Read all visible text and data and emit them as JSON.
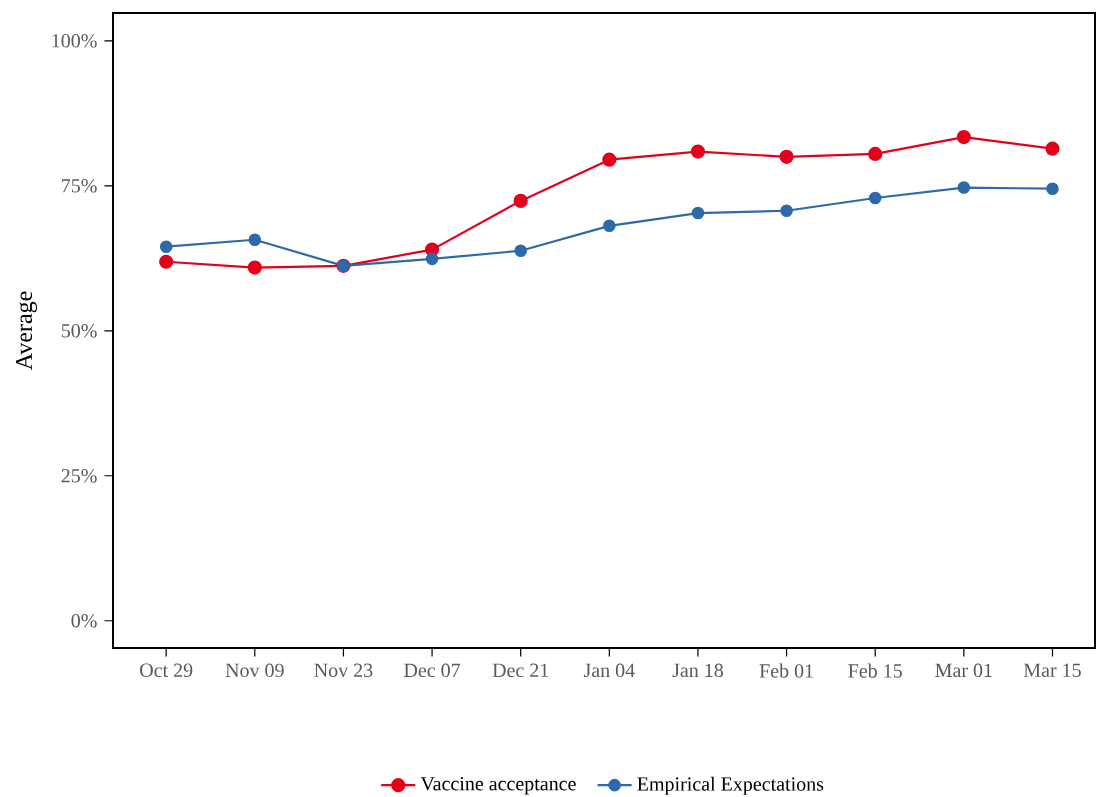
{
  "chart_data": {
    "type": "line",
    "ylabel": "Average",
    "categories": [
      "Oct 29",
      "Nov 09",
      "Nov 23",
      "Dec 07",
      "Dec 21",
      "Jan 04",
      "Jan 18",
      "Feb 01",
      "Feb 15",
      "Mar 01",
      "Mar 15"
    ],
    "series": [
      {
        "name": "Vaccine acceptance",
        "color": "#e2001a",
        "values": [
          61.9,
          60.9,
          61.2,
          64.0,
          72.4,
          79.5,
          80.9,
          80.0,
          80.5,
          83.4,
          81.4
        ]
      },
      {
        "name": "Empirical Expectations",
        "color": "#2e6aa9",
        "values": [
          64.5,
          65.7,
          61.2,
          62.4,
          63.8,
          68.1,
          70.3,
          70.7,
          72.9,
          74.7,
          74.5
        ]
      }
    ],
    "ylim": [
      -4.7,
      104.8
    ],
    "yticks": [
      {
        "value": 0,
        "label": "0%"
      },
      {
        "value": 25,
        "label": "25%"
      },
      {
        "value": 50,
        "label": "50%"
      },
      {
        "value": 75,
        "label": "75%"
      },
      {
        "value": 100,
        "label": "100%"
      }
    ],
    "legend": "bottom",
    "marker": "circle",
    "line_style": "solid",
    "grid": false
  }
}
